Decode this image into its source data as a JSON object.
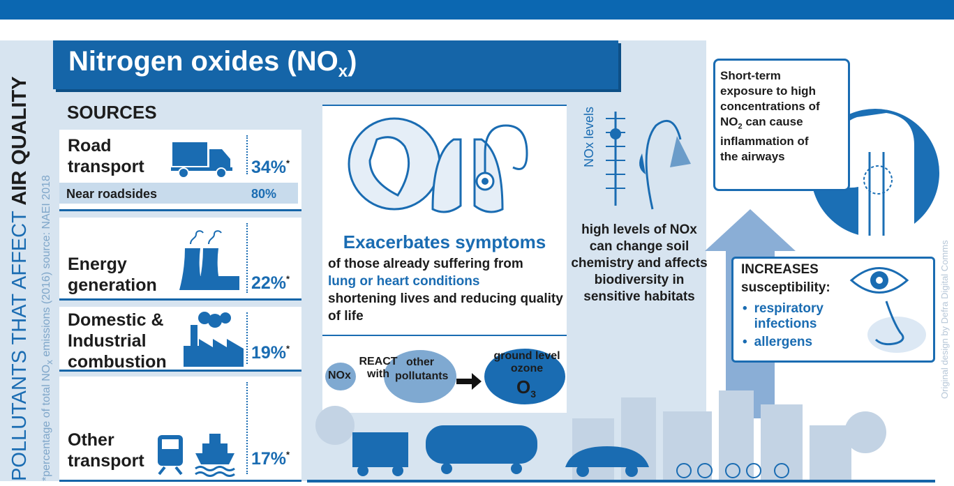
{
  "side_label": {
    "prefix": "POLLUTANTS THAT AFFECT ",
    "emphasis": "AIR QUALITY"
  },
  "footnote": {
    "before": "*percentage of total NO",
    "sub": "x",
    "after": " emissions (2016) source: NAEI 2018"
  },
  "title": {
    "main": "Nitrogen oxides (NO",
    "sub": "x",
    "end": ")"
  },
  "sources": {
    "heading": "SOURCES",
    "items": [
      {
        "label": "Road transport",
        "share": "34%",
        "mark": "*"
      },
      {
        "label": "Energy generation",
        "share": "22%",
        "mark": "*"
      },
      {
        "label": "Domestic & Industrial combustion",
        "share": "19%",
        "mark": "*"
      },
      {
        "label": "Other transport",
        "share": "17%",
        "mark": "*"
      }
    ],
    "near_roadsides": {
      "label": "Near roadsides",
      "share": "80%"
    }
  },
  "health": {
    "heading": "Exacerbates symptoms",
    "line1": "of those already suffering from",
    "highlight": "lung or heart conditions",
    "line2": "shortening lives and reducing quality of life"
  },
  "reaction": {
    "nox": "NOx",
    "react": "REACT with",
    "other": "other pollutants",
    "ozone": "ground level ozone",
    "o": "O",
    "sub": "3"
  },
  "habitat": {
    "axis": "NOx levels",
    "text": "high levels of NOx can change soil chemistry and affects biodiversity in sensitive habitats"
  },
  "exposure": {
    "before": "Short-term exposure to high concentrations of NO",
    "sub": "2",
    "after": " can cause inflammation of the airways"
  },
  "susceptibility": {
    "heading": "INCREASES",
    "subheading": "susceptibility:",
    "items": [
      "respiratory infections",
      "allergens"
    ]
  },
  "credit": "Original design by Defra Digital Comms"
}
